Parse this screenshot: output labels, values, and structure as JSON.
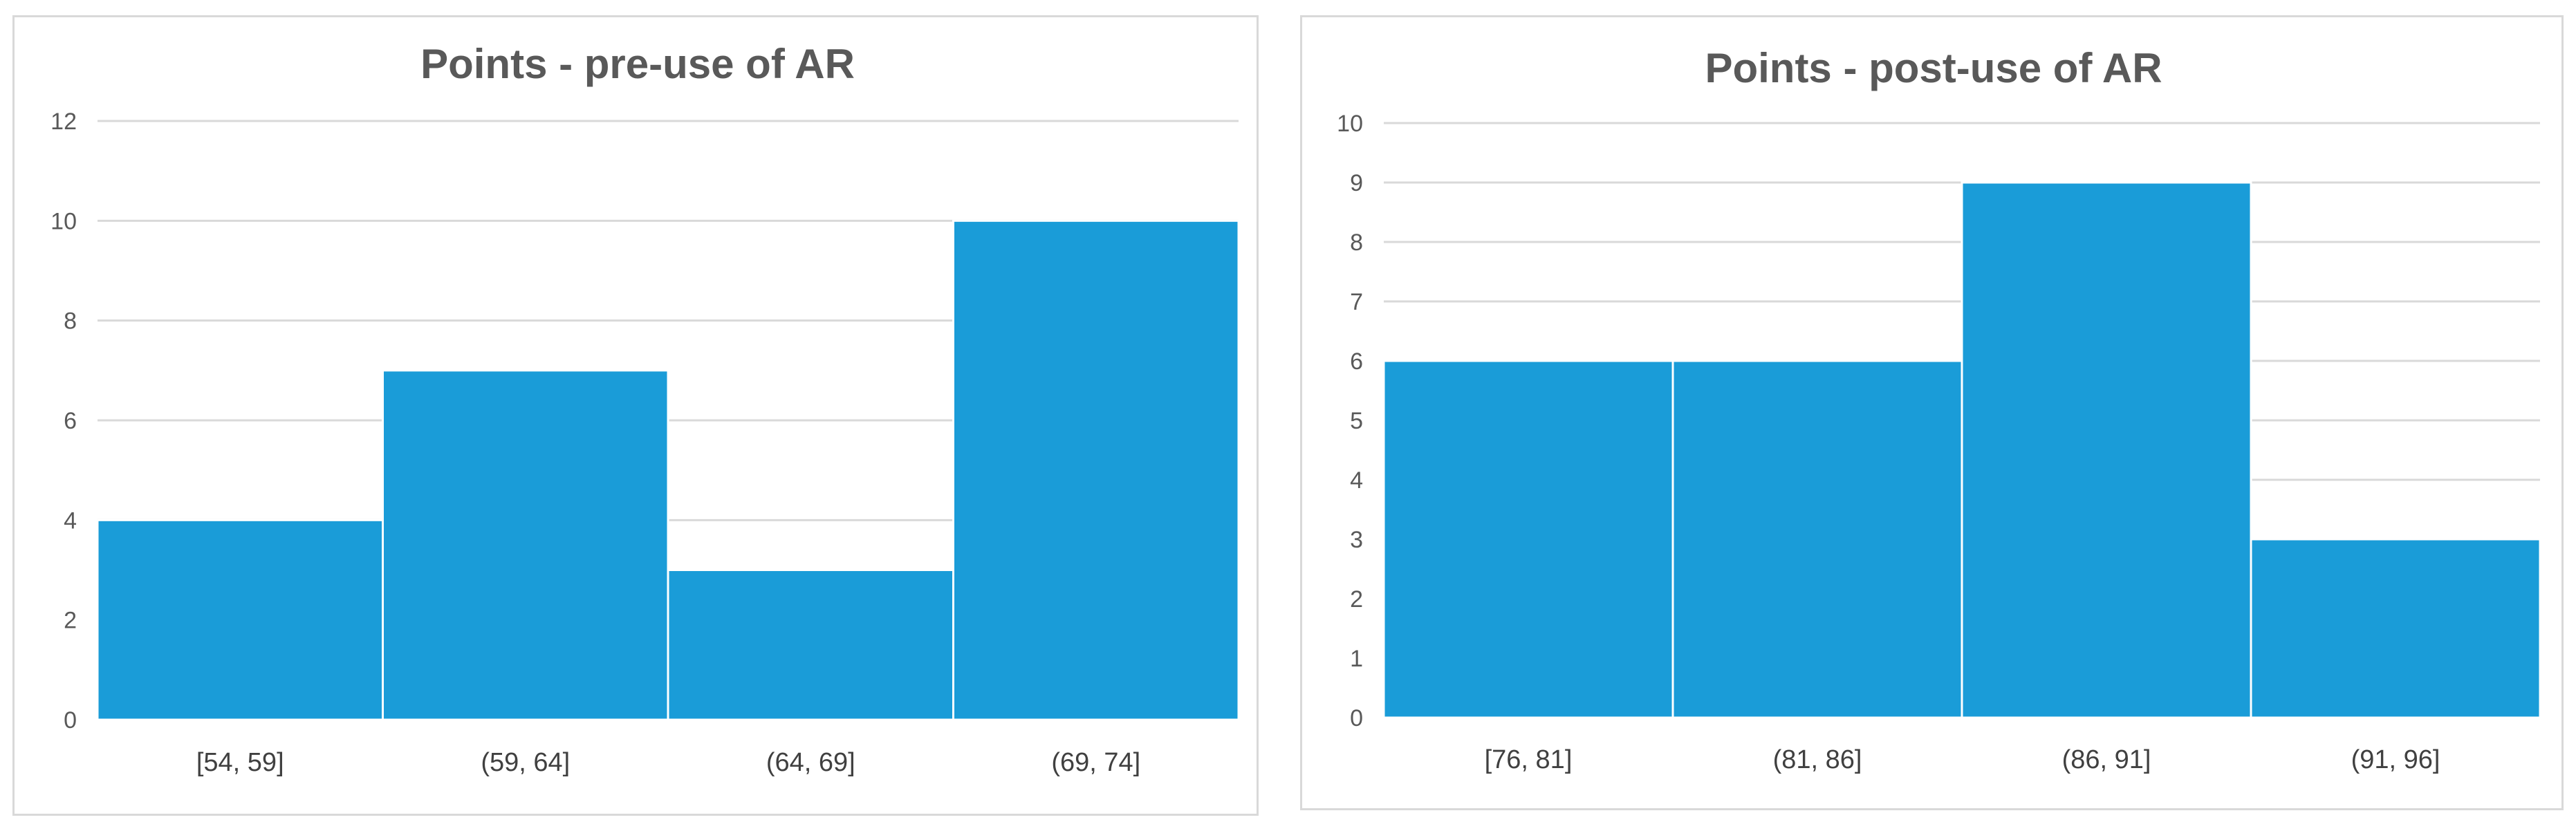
{
  "colors": {
    "bar": "#1a9cd8",
    "grid": "#d9d9d9",
    "axis": "#bfbfbf",
    "title": "#595959",
    "tick": "#595959"
  },
  "chart_data": [
    {
      "type": "bar",
      "title": "Points - pre-use of AR",
      "categories": [
        "[54, 59]",
        "(59, 64]",
        "(64, 69]",
        "(69, 74]"
      ],
      "values": [
        4,
        7,
        3,
        10
      ],
      "ylim": [
        0,
        12
      ],
      "yticks": [
        0,
        2,
        4,
        6,
        8,
        10,
        12
      ],
      "grid": true,
      "legend": "none"
    },
    {
      "type": "bar",
      "title": "Points - post-use of AR",
      "categories": [
        "[76, 81]",
        "(81, 86]",
        "(86, 91]",
        "(91, 96]"
      ],
      "values": [
        6,
        6,
        9,
        3
      ],
      "ylim": [
        0,
        10
      ],
      "yticks": [
        0,
        1,
        2,
        3,
        4,
        5,
        6,
        7,
        8,
        9,
        10
      ],
      "grid": true,
      "legend": "none"
    }
  ]
}
